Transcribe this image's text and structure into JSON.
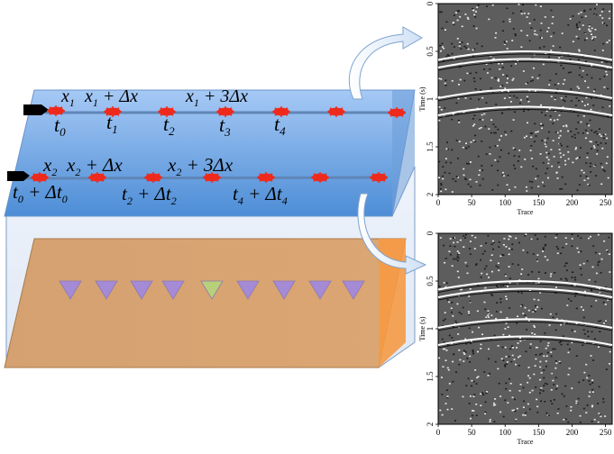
{
  "diagram": {
    "line1": {
      "x_labels": [
        {
          "var": "x",
          "sub": "1",
          "suffix": ""
        },
        {
          "var": "x",
          "sub": "1",
          "suffix": " + Δx"
        },
        {
          "var": "x",
          "sub": "1",
          "suffix": " + 3Δx"
        }
      ],
      "t_labels": [
        {
          "var": "t",
          "sub": "0"
        },
        {
          "var": "t",
          "sub": "1"
        },
        {
          "var": "t",
          "sub": "2"
        },
        {
          "var": "t",
          "sub": "3"
        },
        {
          "var": "t",
          "sub": "4"
        }
      ]
    },
    "line2": {
      "x_labels": [
        {
          "var": "x",
          "sub": "2",
          "suffix": ""
        },
        {
          "var": "x",
          "sub": "2",
          "suffix": " + Δx"
        },
        {
          "var": "x",
          "sub": "2",
          "suffix": " + 3Δx"
        }
      ],
      "t_labels": [
        {
          "var": "t",
          "sub": "0",
          "suffix": " + Δt",
          "suffix_sub": "0"
        },
        {
          "var": "t",
          "sub": "2",
          "suffix": " + Δt",
          "suffix_sub": "2"
        },
        {
          "var": "t",
          "sub": "4",
          "suffix": " + Δt",
          "suffix_sub": "4"
        }
      ]
    },
    "colors": {
      "water_top": "#9ec3f3",
      "water_bottom": "#4f8fd8",
      "seabed": "#d9a574",
      "seabed_side": "#f49a46",
      "source": "#ee2a1c",
      "receiver": "#a58ad6",
      "receiver_highlight": "#b9d07a"
    }
  },
  "panels": [
    {
      "x_axis_label": "Trace",
      "y_axis_label": "Time (s)",
      "x_ticks": [
        "0",
        "50",
        "100",
        "150",
        "200",
        "250"
      ],
      "y_ticks": [
        "0",
        "0.5",
        "1",
        "1.5",
        "2"
      ]
    },
    {
      "x_axis_label": "Trace",
      "y_axis_label": "Time (s)",
      "x_ticks": [
        "0",
        "50",
        "100",
        "150",
        "200",
        "250"
      ],
      "y_ticks": [
        "0",
        "0.5",
        "1",
        "1.5",
        "2"
      ]
    }
  ]
}
